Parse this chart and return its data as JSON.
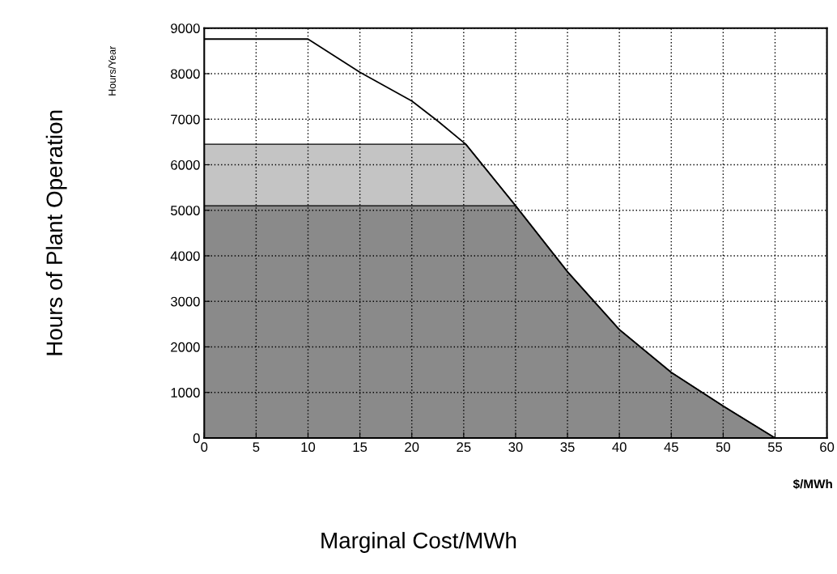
{
  "chart_data": {
    "type": "line",
    "xlabel": "Marginal Cost/MWh",
    "ylabel": "Hours of Plant Operation",
    "annotations": [
      "Hours/Year",
      "$/MWh"
    ],
    "series": [
      {
        "type": "area",
        "color": "#c4c4c4",
        "x": [
          0,
          25.2,
          30
        ],
        "values": [
          6450,
          6450,
          5100
        ]
      },
      {
        "type": "area",
        "color": "#8a8a8a",
        "x": [
          0,
          30,
          35,
          40,
          45,
          50,
          55
        ],
        "values": [
          5100,
          5100,
          3650,
          2380,
          1440,
          700,
          0
        ]
      },
      {
        "type": "line",
        "color": "#000000",
        "x": [
          0,
          10,
          15,
          20,
          22.5,
          25.2,
          30,
          35,
          40,
          45,
          50,
          55,
          57.5
        ],
        "values": [
          8760,
          8760,
          8030,
          7400,
          6960,
          6450,
          5100,
          3650,
          2380,
          1440,
          700,
          0,
          0
        ]
      }
    ],
    "xlim": [
      0,
      60
    ],
    "xticks": [
      0,
      5,
      10,
      15,
      20,
      25,
      30,
      35,
      40,
      45,
      50,
      55,
      60
    ],
    "ylim": [
      0,
      9000
    ],
    "yticks": [
      0,
      1000,
      2000,
      3000,
      4000,
      5000,
      6000,
      7000,
      8000,
      9000
    ],
    "grid": true,
    "line_style": "solid",
    "marker": "none"
  }
}
